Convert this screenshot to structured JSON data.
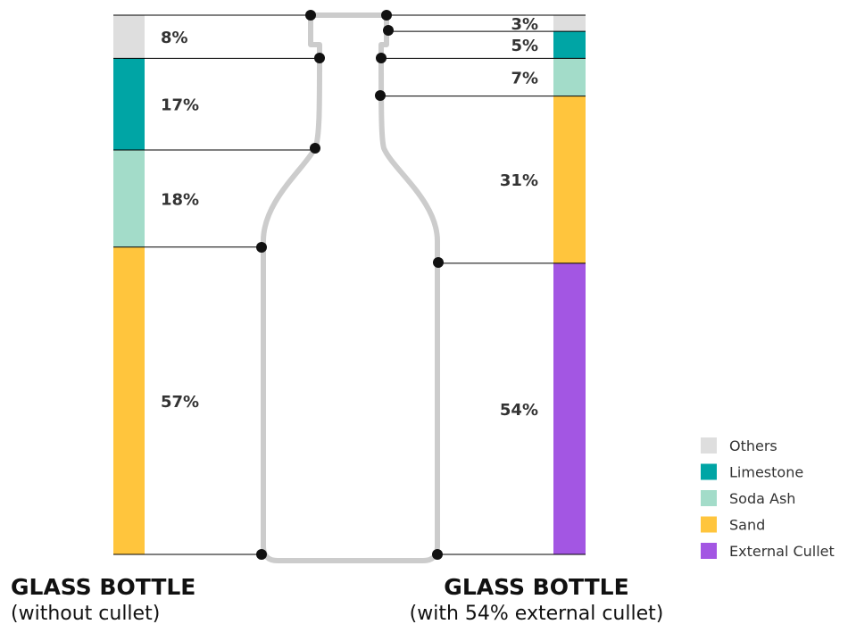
{
  "chart_data": [
    {
      "type": "stacked-bar",
      "title": "GLASS BOTTLE",
      "subtitle": "(without cullet)",
      "segments": [
        {
          "name": "Others",
          "value": 8,
          "label": "8%"
        },
        {
          "name": "Limestone",
          "value": 17,
          "label": "17%"
        },
        {
          "name": "Soda Ash",
          "value": 18,
          "label": "18%"
        },
        {
          "name": "Sand",
          "value": 57,
          "label": "57%"
        }
      ]
    },
    {
      "type": "stacked-bar",
      "title": "GLASS BOTTLE",
      "subtitle": "(with 54% external cullet)",
      "segments": [
        {
          "name": "Others",
          "value": 3,
          "label": "3%"
        },
        {
          "name": "Limestone",
          "value": 5,
          "label": "5%"
        },
        {
          "name": "Soda Ash",
          "value": 7,
          "label": "7%"
        },
        {
          "name": "Sand",
          "value": 31,
          "label": "31%"
        },
        {
          "name": "External Cullet",
          "value": 54,
          "label": "54%"
        }
      ]
    }
  ],
  "legend": {
    "position": "bottom-right",
    "items": [
      {
        "name": "Others",
        "color": "#dedede"
      },
      {
        "name": "Limestone",
        "color": "#00a5a5"
      },
      {
        "name": "Soda Ash",
        "color": "#a3dcc9"
      },
      {
        "name": "Sand",
        "color": "#ffc53d"
      },
      {
        "name": "External Cullet",
        "color": "#a356e3"
      }
    ]
  },
  "colors": {
    "bottle": "#cccccc",
    "leader": "#000000",
    "dot": "#111111"
  }
}
